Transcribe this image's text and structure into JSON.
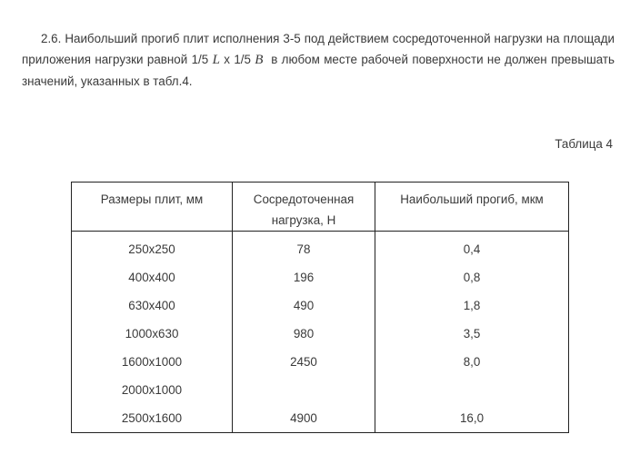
{
  "paragraph": {
    "part1": "2.6. Наибольший прогиб плит исполнения 3-5 под действием сосредоточенной нагрузки на площади приложения нагрузки равной 1/5",
    "var_l": "L",
    "part2": "х 1/5",
    "var_b": "B",
    "part3": "в любом месте рабочей поверхности не должен превышать значений, указанных в табл.4."
  },
  "table_caption": "Таблица 4",
  "table": {
    "headers": [
      "Размеры плит, мм",
      "Сосредоточенная нагрузка, Н",
      "Наибольший прогиб, мкм"
    ],
    "rows": [
      [
        "250x250",
        "78",
        "0,4"
      ],
      [
        "400x400",
        "196",
        "0,8"
      ],
      [
        "630x400",
        "490",
        "1,8"
      ],
      [
        "1000x630",
        "980",
        "3,5"
      ],
      [
        "1600x1000",
        "2450",
        "8,0"
      ],
      [
        "2000x1000",
        "",
        ""
      ],
      [
        "2500x1600",
        "4900",
        "16,0"
      ]
    ]
  }
}
